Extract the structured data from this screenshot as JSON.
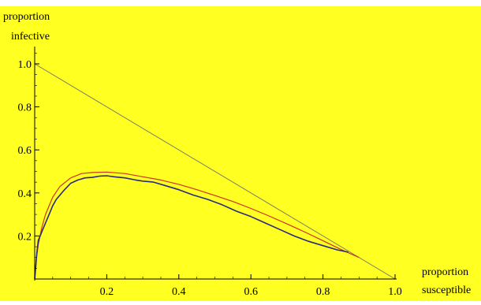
{
  "colors": {
    "background": "#ffff22",
    "axis": "#000000",
    "reference_line": "#7a7a6a",
    "stochastic_path": "#2a2a7a",
    "deterministic_curve": "#cc3322"
  },
  "chart_data": {
    "type": "line",
    "title": "",
    "ylabel_lines": [
      "proportion",
      "infective"
    ],
    "xlabel_lines": [
      "proportion",
      "susceptible"
    ],
    "xlim": [
      0,
      1.0
    ],
    "ylim": [
      0,
      1.08
    ],
    "x_ticks": [
      0.2,
      0.4,
      0.6,
      0.8,
      1.0
    ],
    "x_tick_labels": [
      "0.2",
      "0.4",
      "0.6",
      "0.8",
      "1.0"
    ],
    "y_ticks": [
      0.2,
      0.4,
      0.6,
      0.8,
      1.0
    ],
    "y_tick_labels": [
      "0.2",
      "0.4",
      "0.6",
      "0.8",
      "1.0"
    ],
    "grid": false,
    "series": [
      {
        "key": "reference_line",
        "x": [
          0.0,
          1.0
        ],
        "y": [
          1.0,
          0.0
        ]
      },
      {
        "key": "deterministic_curve",
        "x": [
          0.0,
          0.005,
          0.01,
          0.02,
          0.03,
          0.05,
          0.07,
          0.1,
          0.13,
          0.16,
          0.2,
          0.25,
          0.3,
          0.35,
          0.4,
          0.45,
          0.5,
          0.55,
          0.6,
          0.65,
          0.7,
          0.75,
          0.8,
          0.85,
          0.9
        ],
        "y": [
          0.0,
          0.1,
          0.16,
          0.24,
          0.3,
          0.38,
          0.43,
          0.47,
          0.49,
          0.495,
          0.497,
          0.49,
          0.475,
          0.46,
          0.44,
          0.415,
          0.388,
          0.36,
          0.328,
          0.293,
          0.256,
          0.218,
          0.178,
          0.137,
          0.1
        ]
      },
      {
        "key": "stochastic_path",
        "x": [
          0.0,
          0.003,
          0.006,
          0.01,
          0.015,
          0.02,
          0.03,
          0.04,
          0.05,
          0.06,
          0.08,
          0.1,
          0.12,
          0.14,
          0.16,
          0.18,
          0.2,
          0.22,
          0.25,
          0.28,
          0.3,
          0.33,
          0.36,
          0.4,
          0.44,
          0.48,
          0.52,
          0.56,
          0.6,
          0.64,
          0.68,
          0.72,
          0.76,
          0.8,
          0.84,
          0.87
        ],
        "y": [
          0.0,
          0.06,
          0.12,
          0.18,
          0.2,
          0.22,
          0.26,
          0.3,
          0.34,
          0.37,
          0.41,
          0.445,
          0.46,
          0.47,
          0.472,
          0.478,
          0.48,
          0.475,
          0.47,
          0.46,
          0.455,
          0.45,
          0.435,
          0.415,
          0.39,
          0.37,
          0.345,
          0.315,
          0.29,
          0.26,
          0.23,
          0.2,
          0.175,
          0.155,
          0.135,
          0.125
        ]
      }
    ]
  }
}
